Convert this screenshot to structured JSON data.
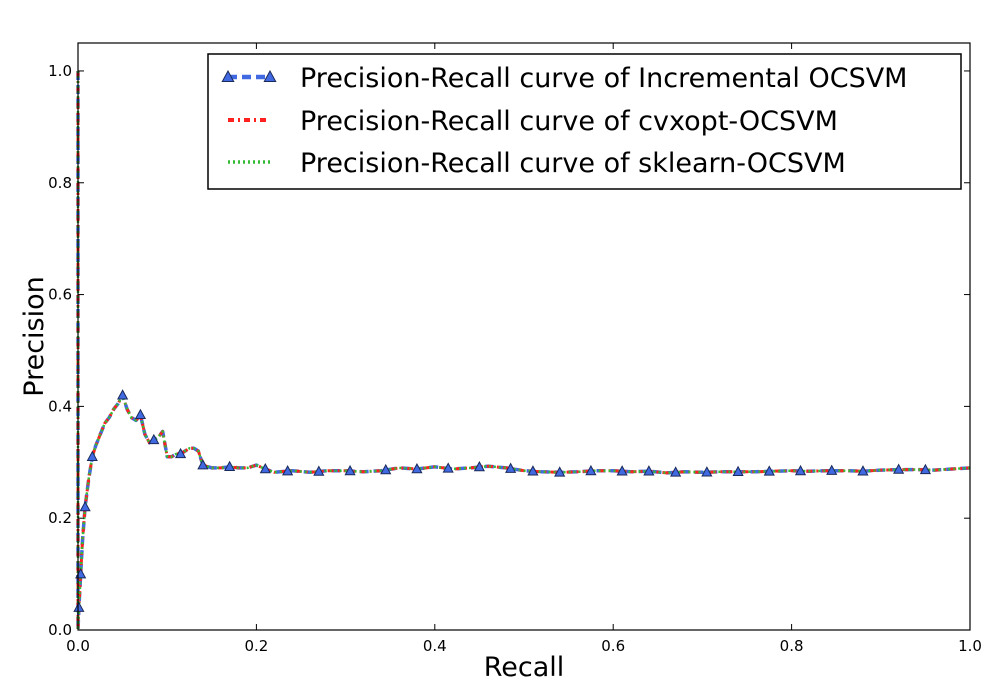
{
  "chart_data": {
    "type": "line",
    "xlabel": "Recall",
    "ylabel": "Precision",
    "xlim": [
      0.0,
      1.0
    ],
    "ylim": [
      0.0,
      1.05
    ],
    "xticks": [
      "0.0",
      "0.2",
      "0.4",
      "0.6",
      "0.8",
      "1.0"
    ],
    "yticks": [
      "0.0",
      "0.2",
      "0.4",
      "0.6",
      "0.8",
      "1.0"
    ],
    "grid": false,
    "legend_position": "top-right",
    "series": [
      {
        "name": "Precision-Recall curve of Incremental OCSVM",
        "color": "#4169e1",
        "style": "dashed-triangle",
        "x": [
          0.0,
          0.0,
          0.001,
          0.003,
          0.005,
          0.008,
          0.012,
          0.016,
          0.02,
          0.025,
          0.03,
          0.035,
          0.04,
          0.045,
          0.05,
          0.055,
          0.06,
          0.065,
          0.07,
          0.075,
          0.08,
          0.085,
          0.09,
          0.095,
          0.1,
          0.105,
          0.11,
          0.115,
          0.12,
          0.125,
          0.13,
          0.135,
          0.14,
          0.15,
          0.16,
          0.17,
          0.18,
          0.19,
          0.2,
          0.21,
          0.22,
          0.24,
          0.26,
          0.28,
          0.3,
          0.32,
          0.34,
          0.36,
          0.38,
          0.4,
          0.42,
          0.44,
          0.46,
          0.48,
          0.5,
          0.52,
          0.54,
          0.56,
          0.58,
          0.6,
          0.62,
          0.64,
          0.66,
          0.68,
          0.7,
          0.72,
          0.74,
          0.76,
          0.78,
          0.8,
          0.82,
          0.84,
          0.86,
          0.88,
          0.9,
          0.92,
          0.94,
          0.96,
          0.98,
          1.0
        ],
        "y": [
          1.0,
          0.0,
          0.04,
          0.1,
          0.16,
          0.22,
          0.27,
          0.31,
          0.33,
          0.35,
          0.37,
          0.38,
          0.395,
          0.405,
          0.42,
          0.395,
          0.38,
          0.375,
          0.385,
          0.35,
          0.335,
          0.34,
          0.345,
          0.355,
          0.31,
          0.31,
          0.315,
          0.315,
          0.32,
          0.325,
          0.325,
          0.32,
          0.295,
          0.29,
          0.29,
          0.292,
          0.29,
          0.29,
          0.295,
          0.288,
          0.282,
          0.285,
          0.282,
          0.285,
          0.285,
          0.283,
          0.285,
          0.29,
          0.288,
          0.292,
          0.288,
          0.29,
          0.293,
          0.29,
          0.285,
          0.283,
          0.282,
          0.283,
          0.285,
          0.285,
          0.283,
          0.284,
          0.281,
          0.283,
          0.282,
          0.283,
          0.283,
          0.283,
          0.284,
          0.285,
          0.284,
          0.285,
          0.285,
          0.284,
          0.286,
          0.287,
          0.287,
          0.286,
          0.288,
          0.29
        ]
      },
      {
        "name": "Precision-Recall curve of cvxopt-OCSVM",
        "color": "#ff2020",
        "style": "dash-dot"
      },
      {
        "name": "Precision-Recall curve of sklearn-OCSVM",
        "color": "#33bb33",
        "style": "dotted"
      }
    ],
    "marker_x": [
      0.001,
      0.003,
      0.008,
      0.016,
      0.05,
      0.07,
      0.085,
      0.115,
      0.14,
      0.17,
      0.21,
      0.235,
      0.27,
      0.305,
      0.345,
      0.38,
      0.415,
      0.45,
      0.485,
      0.51,
      0.54,
      0.575,
      0.61,
      0.64,
      0.67,
      0.705,
      0.74,
      0.775,
      0.81,
      0.845,
      0.88,
      0.92,
      0.95
    ]
  }
}
